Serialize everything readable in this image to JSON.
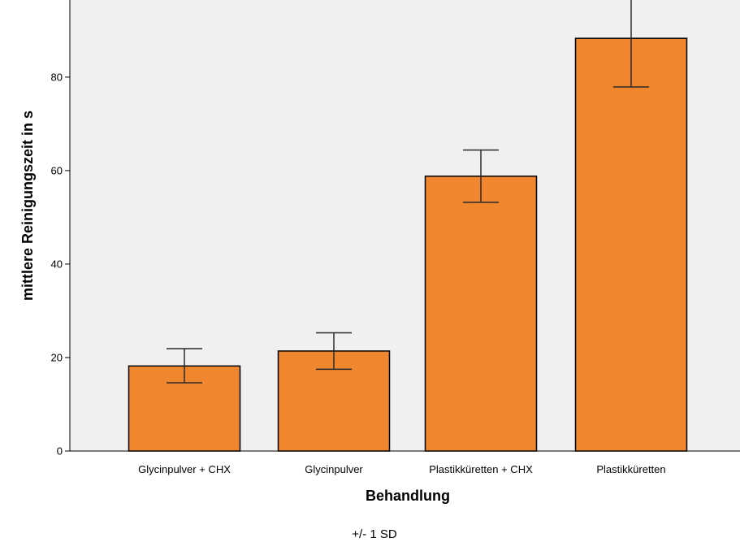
{
  "chart_data": {
    "type": "bar",
    "categories": [
      "Glycinpulver + CHX",
      "Glycinpulver",
      "Plastikküretten + CHX",
      "Plastikküretten"
    ],
    "values": [
      18.2,
      21.4,
      58.8,
      88.3
    ],
    "error_low": [
      14.6,
      17.5,
      53.2,
      77.9
    ],
    "error_high": [
      21.9,
      25.3,
      64.4,
      98.7
    ],
    "xlabel": "Behandlung",
    "ylabel": "mittlere Reinigungszeit in s",
    "ylim": [
      0,
      96.5
    ],
    "yticks": [
      "0",
      "20",
      "40",
      "60",
      "80"
    ],
    "yticks_values": [
      0,
      20,
      40,
      60,
      80
    ],
    "error_note": "+/- 1 SD",
    "colors": {
      "bar": "#F0862D",
      "plot_bg": "#F0F0F0",
      "stroke": "#000000",
      "errorbar": "#2B2B2B"
    },
    "grid": false
  }
}
